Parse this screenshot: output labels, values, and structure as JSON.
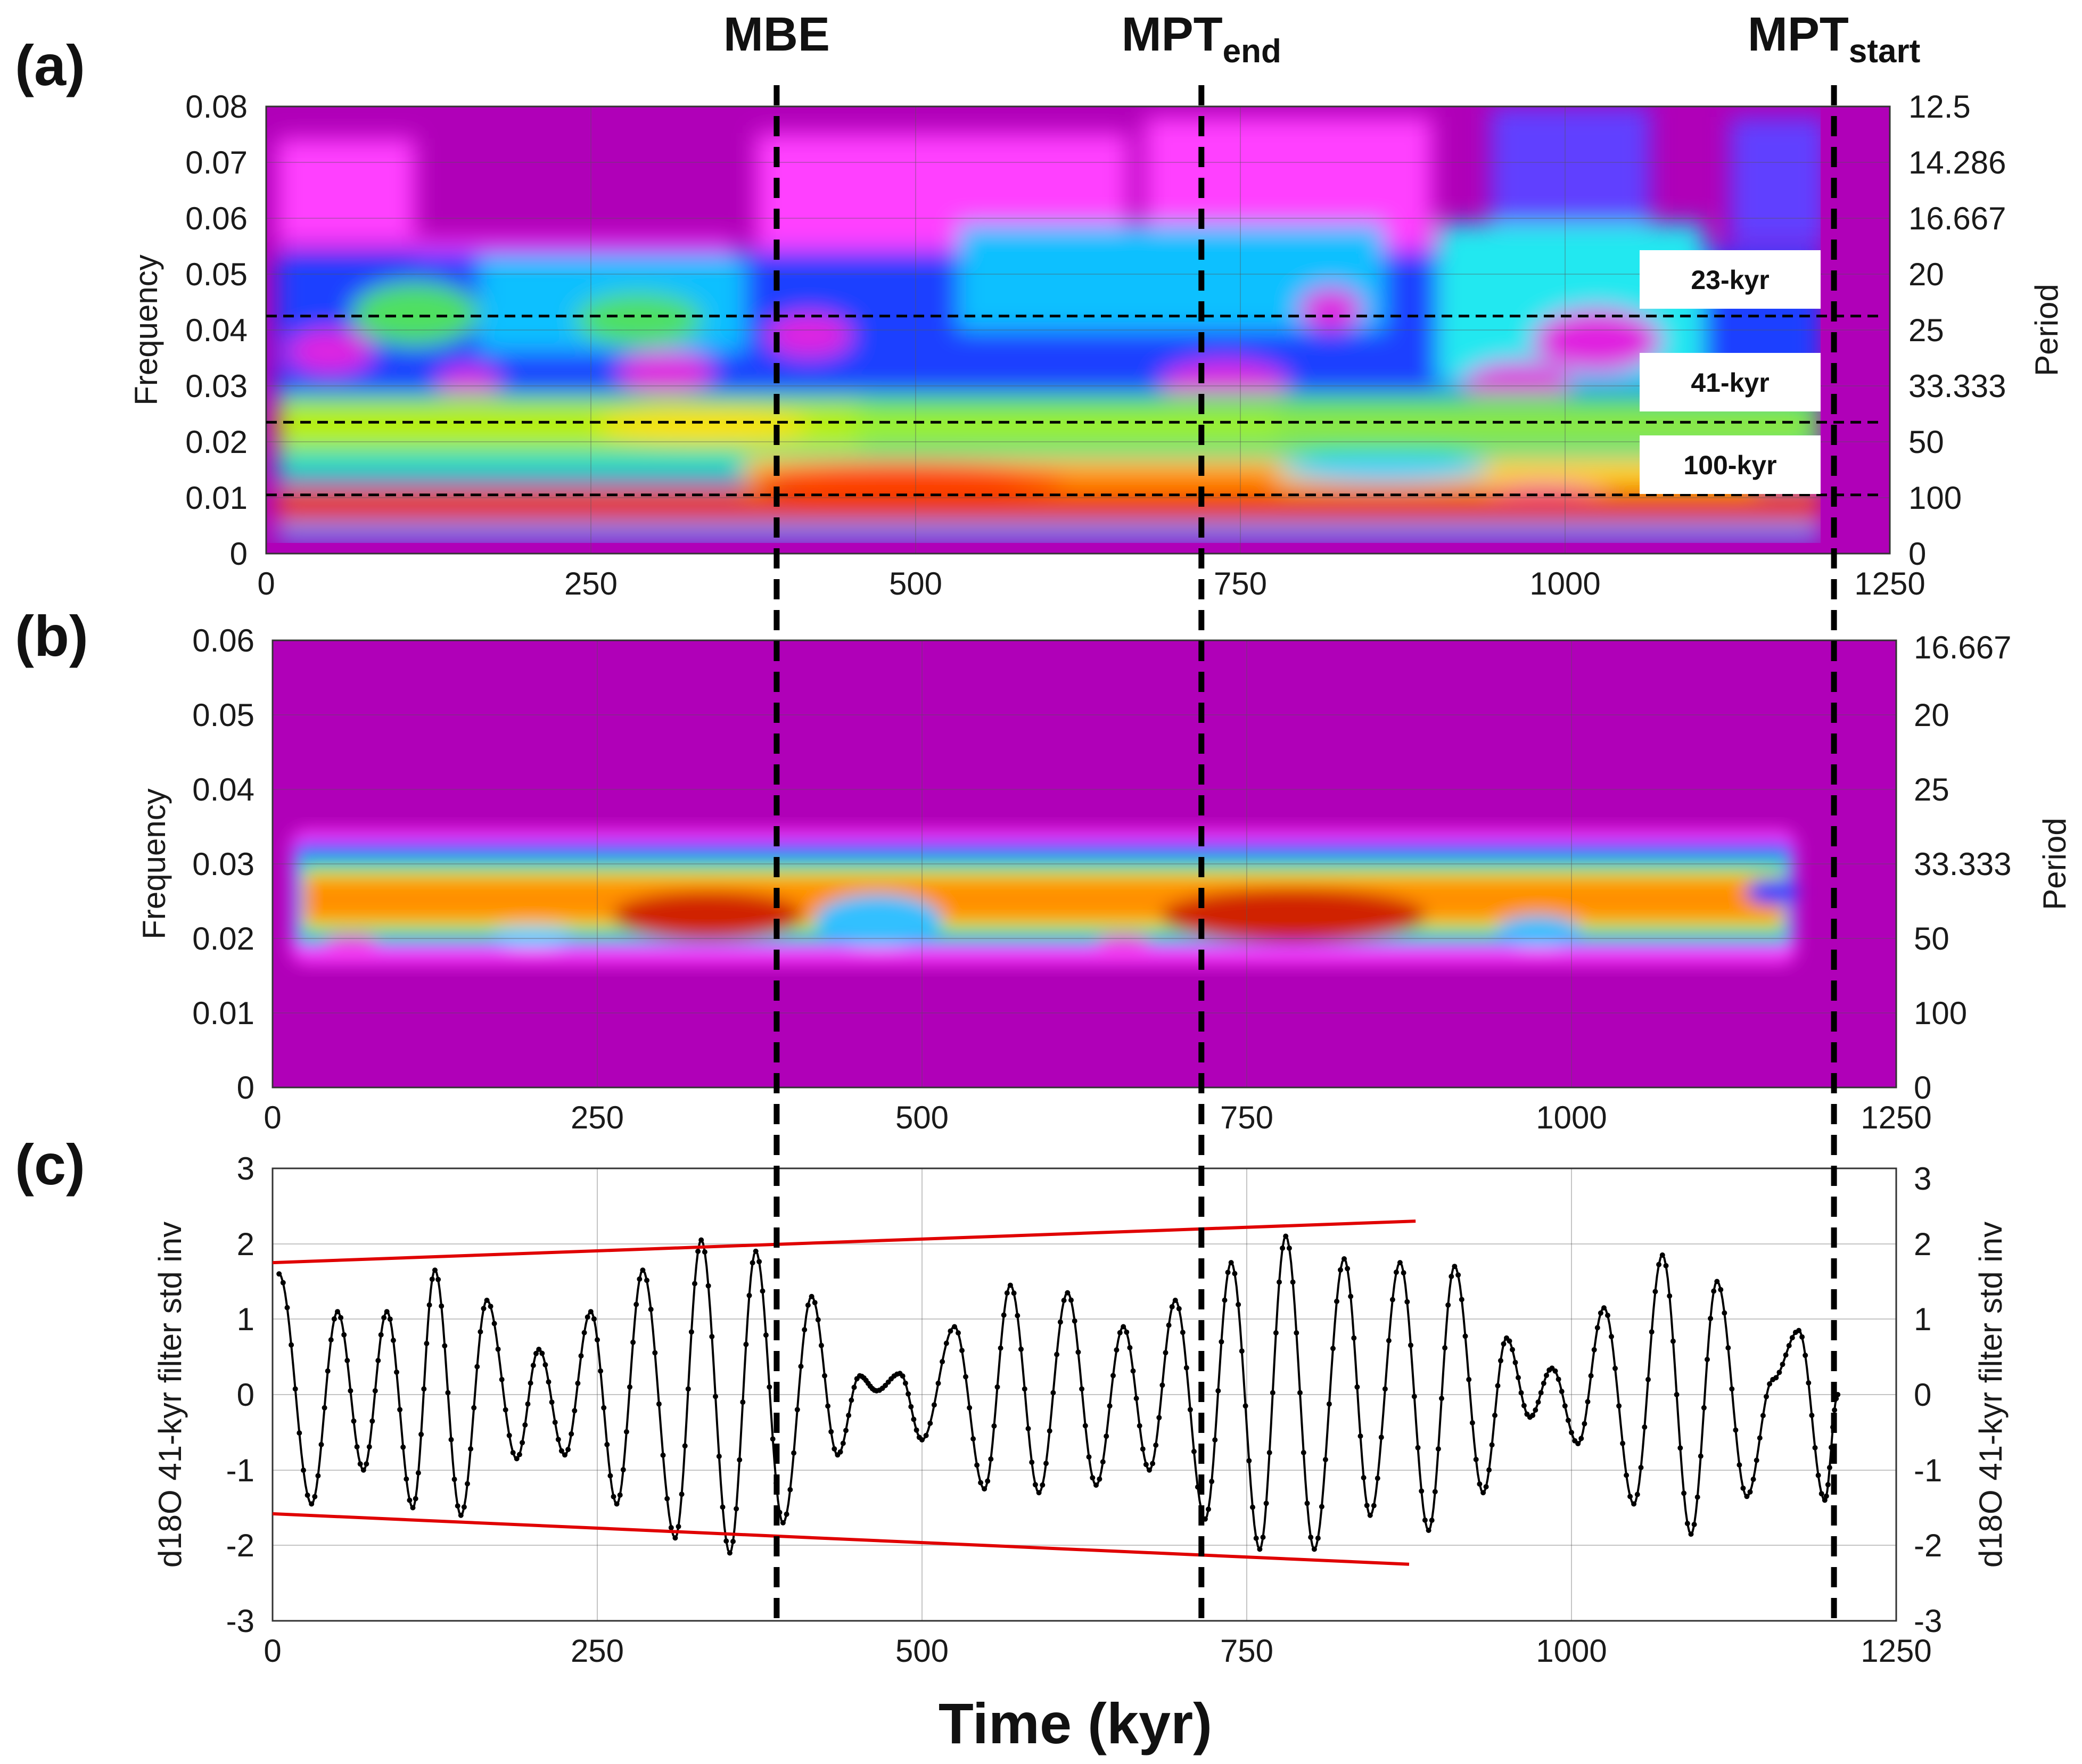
{
  "panels": {
    "a": "(a)",
    "b": "(b)",
    "c": "(c)"
  },
  "events": [
    {
      "name": "MBE",
      "sub": "",
      "x": 393
    },
    {
      "name": "MPT",
      "sub": "end",
      "x": 720
    },
    {
      "name": "MPT",
      "sub": "start",
      "x": 1207
    }
  ],
  "x_axis": {
    "title": "Time (kyr)",
    "ticks": [
      "0",
      "250",
      "500",
      "750",
      "1000",
      "1250"
    ],
    "range": [
      0,
      1250
    ]
  },
  "chart_data": [
    {
      "type": "heatmap",
      "panel": "(a)",
      "ylabel": "Frequency",
      "ylabel_right": "Period",
      "xlim": [
        0,
        1250
      ],
      "ylim": [
        0,
        0.08
      ],
      "y_ticks": [
        "0",
        "0.01",
        "0.02",
        "0.03",
        "0.04",
        "0.05",
        "0.06",
        "0.07",
        "0.08"
      ],
      "y_ticks_right": [
        "0",
        "100",
        "50",
        "33.333",
        "25",
        "20",
        "16.667",
        "14.286",
        "12.5"
      ],
      "grid": true,
      "band_lines": [
        {
          "label": "23-kyr",
          "frequency": 0.0425
        },
        {
          "label": "41-kyr",
          "frequency": 0.0235
        },
        {
          "label": "100-kyr",
          "frequency": 0.0105
        }
      ],
      "colors": {
        "low": "#b000b8",
        "high": "#cc0000"
      }
    },
    {
      "type": "heatmap",
      "panel": "(b)",
      "ylabel": "Frequency",
      "ylabel_right": "Period",
      "xlim": [
        0,
        1250
      ],
      "ylim": [
        0,
        0.06
      ],
      "y_ticks": [
        "0",
        "0.01",
        "0.02",
        "0.03",
        "0.04",
        "0.05",
        "0.06"
      ],
      "y_ticks_right": [
        "0",
        "100",
        "50",
        "33.333",
        "25",
        "20",
        "16.667"
      ],
      "grid": true,
      "colors": {
        "low": "#b000b8",
        "high": "#cc0000"
      }
    },
    {
      "type": "line",
      "panel": "(c)",
      "ylabel": "d18O 41-kyr filter std inv",
      "ylabel_right": "d18O 41-kyr filter std inv",
      "xlim": [
        0,
        1250
      ],
      "ylim": [
        -3,
        3
      ],
      "y_ticks": [
        "-3",
        "-2",
        "-1",
        "0",
        "1",
        "2",
        "3"
      ],
      "grid": true,
      "extrema": [
        [
          5,
          1.6
        ],
        [
          30,
          -1.45
        ],
        [
          50,
          1.1
        ],
        [
          70,
          -1.0
        ],
        [
          88,
          1.1
        ],
        [
          108,
          -1.5
        ],
        [
          125,
          1.65
        ],
        [
          145,
          -1.6
        ],
        [
          165,
          1.25
        ],
        [
          188,
          -0.85
        ],
        [
          205,
          0.6
        ],
        [
          225,
          -0.8
        ],
        [
          245,
          1.1
        ],
        [
          265,
          -1.45
        ],
        [
          285,
          1.65
        ],
        [
          310,
          -1.9
        ],
        [
          330,
          2.05
        ],
        [
          352,
          -2.1
        ],
        [
          372,
          1.9
        ],
        [
          393,
          -1.7
        ],
        [
          415,
          1.3
        ],
        [
          435,
          -0.8
        ],
        [
          452,
          0.25
        ],
        [
          465,
          0.05
        ],
        [
          483,
          0.28
        ],
        [
          500,
          -0.6
        ],
        [
          525,
          0.9
        ],
        [
          548,
          -1.25
        ],
        [
          568,
          1.45
        ],
        [
          590,
          -1.3
        ],
        [
          612,
          1.35
        ],
        [
          634,
          -1.2
        ],
        [
          655,
          0.9
        ],
        [
          675,
          -1.0
        ],
        [
          695,
          1.25
        ],
        [
          718,
          -1.65
        ],
        [
          738,
          1.75
        ],
        [
          760,
          -2.05
        ],
        [
          780,
          2.1
        ],
        [
          802,
          -2.05
        ],
        [
          825,
          1.8
        ],
        [
          845,
          -1.6
        ],
        [
          868,
          1.75
        ],
        [
          890,
          -1.8
        ],
        [
          910,
          1.7
        ],
        [
          932,
          -1.3
        ],
        [
          950,
          0.75
        ],
        [
          968,
          -0.3
        ],
        [
          985,
          0.35
        ],
        [
          1005,
          -0.65
        ],
        [
          1025,
          1.15
        ],
        [
          1048,
          -1.45
        ],
        [
          1070,
          1.85
        ],
        [
          1092,
          -1.85
        ],
        [
          1112,
          1.5
        ],
        [
          1135,
          -1.35
        ],
        [
          1155,
          0.2
        ],
        [
          1175,
          0.85
        ],
        [
          1195,
          -1.4
        ],
        [
          1205,
          0.0
        ]
      ],
      "trend_lines": [
        {
          "from": [
            0,
            1.75
          ],
          "to": [
            880,
            2.3
          ]
        },
        {
          "from": [
            0,
            -1.58
          ],
          "to": [
            875,
            -2.25
          ]
        }
      ],
      "colors": {
        "series": "#000000",
        "trend": "#e00000"
      }
    }
  ]
}
